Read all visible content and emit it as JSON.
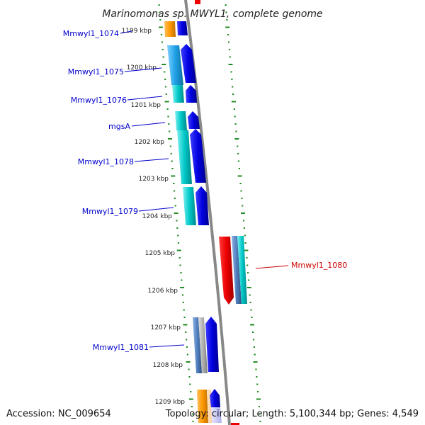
{
  "title": "Marinomonas sp. MWYL1, complete genome",
  "footer": {
    "accession": "Accession: NC_009654",
    "topology": "Topology: circular; Length: 5,100,344 bp; Genes: 4,549"
  },
  "kbp_ticks": [
    "1199 kbp",
    "1200 kbp",
    "1201 kbp",
    "1202 kbp",
    "1203 kbp",
    "1204 kbp",
    "1205 kbp",
    "1206 kbp",
    "1207 kbp",
    "1208 kbp",
    "1209 kbp"
  ],
  "genes": [
    {
      "name": "Mmwyl1_1074",
      "strand": "forward",
      "color": "#0000cc"
    },
    {
      "name": "Mmwyl1_1075",
      "strand": "forward",
      "color": "#0000cc"
    },
    {
      "name": "Mmwyl1_1076",
      "strand": "forward",
      "color": "#0000cc"
    },
    {
      "name": "mgsA",
      "strand": "forward",
      "color": "#0000cc"
    },
    {
      "name": "Mmwyl1_1078",
      "strand": "forward",
      "color": "#0000cc"
    },
    {
      "name": "Mmwyl1_1079",
      "strand": "forward",
      "color": "#0000cc"
    },
    {
      "name": "Mmwyl1_1080",
      "strand": "reverse",
      "color": "#cc0000"
    },
    {
      "name": "Mmwyl1_1081",
      "strand": "forward",
      "color": "#0000cc"
    }
  ],
  "colors": {
    "forward_gene": "#0000ee",
    "reverse_gene": "#ee0000",
    "cog_cyan": "#00c8c8",
    "cog_blue": "#1ea0e6",
    "cog_orange": "#ff9900",
    "cog_steel": "#5080c0",
    "backbone": "#888888",
    "tick_green": "#228b22"
  }
}
